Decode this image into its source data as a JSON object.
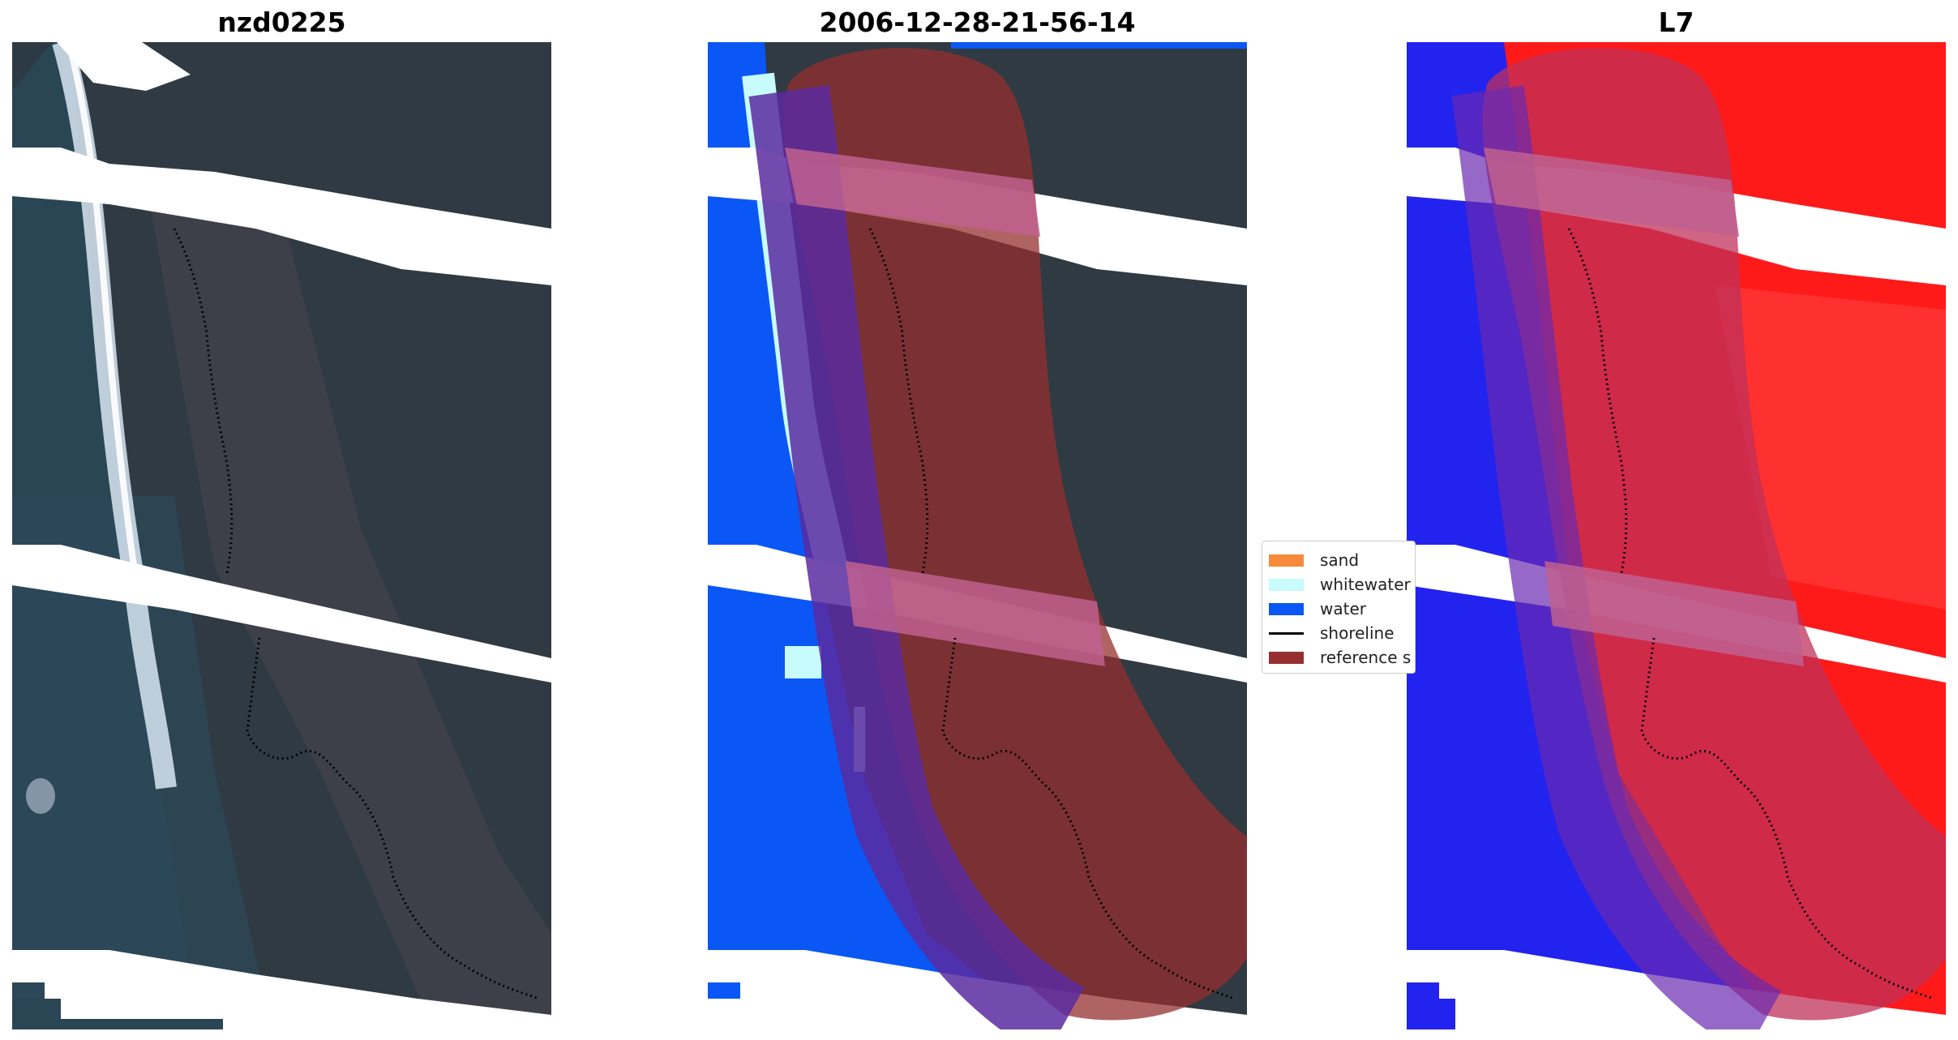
{
  "panels": [
    {
      "title": "nzd0225"
    },
    {
      "title": "2006-12-28-21-56-14"
    },
    {
      "title": "L7"
    }
  ],
  "legend": {
    "items": [
      {
        "label": "sand",
        "color": "#f58a3a",
        "kind": "patch"
      },
      {
        "label": "whitewater",
        "color": "#c8fbfb",
        "kind": "patch"
      },
      {
        "label": "water",
        "color": "#0a57f5",
        "kind": "patch"
      },
      {
        "label": "shoreline",
        "color": "#000000",
        "kind": "line"
      },
      {
        "label": "reference s",
        "color": "#962f2f",
        "kind": "patch"
      }
    ]
  },
  "colors": {
    "land_dark": "#2f3a42",
    "ocean_dark": "#2a4654",
    "whitewater": "#c8fbfb",
    "water": "#0a57f5",
    "reference_overlay": "#962f2f",
    "overlay_light": "#c0608f",
    "index_red": "#ff1010",
    "index_blue": "#2323f0",
    "shoreline": "#000000"
  }
}
